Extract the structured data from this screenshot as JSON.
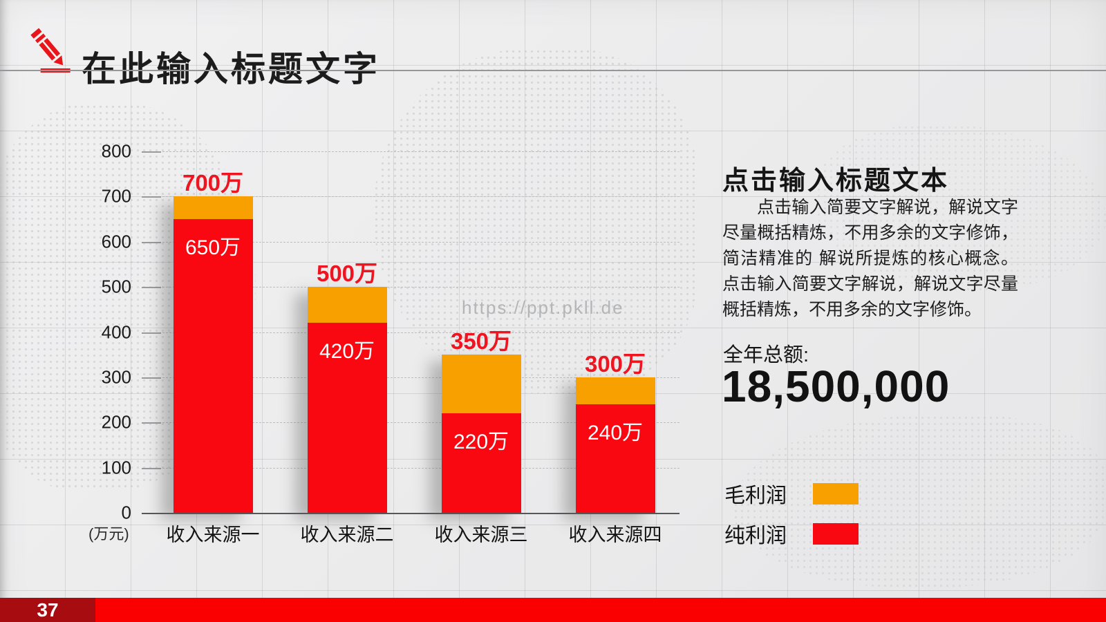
{
  "header": {
    "title": "在此输入标题文字"
  },
  "watermark": "https://ppt.pkll.de",
  "chart_data": {
    "type": "bar",
    "stacked": true,
    "title": "",
    "xlabel": "",
    "ylabel": "(万元)",
    "ylim": [
      0,
      800
    ],
    "ytick_step": 100,
    "grid": true,
    "categories": [
      "收入来源一",
      "收入来源二",
      "收入来源三",
      "收入来源四"
    ],
    "series": [
      {
        "name": "纯利润",
        "color": "#f90812",
        "values": [
          650,
          420,
          220,
          240
        ]
      },
      {
        "name": "毛利润",
        "color": "#f7a000",
        "values": [
          50,
          80,
          130,
          60
        ]
      }
    ],
    "totals": [
      700,
      500,
      350,
      300
    ],
    "total_labels": [
      "700万",
      "500万",
      "350万",
      "300万"
    ],
    "inner_labels": [
      "650万",
      "420万",
      "220万",
      "240万"
    ],
    "label_color": "#ee1420",
    "legend_position": "right-panel"
  },
  "panel": {
    "title": "点击输入标题文本",
    "body": "点击输入简要文字解说，解说文字尽量概括精炼，不用多余的文字修饰，简洁精准的 解说所提炼的核心概念。点击输入简要文字解说，解说文字尽量概括精炼，不用多余的文字修饰。",
    "total_label": "全年总额:",
    "total_value": "18,500,000",
    "legend": [
      {
        "label": "毛利润",
        "color": "#f7a000"
      },
      {
        "label": "纯利润",
        "color": "#f90812"
      }
    ]
  },
  "footer": {
    "page_number": "37",
    "dark_color": "#a60c10",
    "bright_color": "#fb0000"
  }
}
